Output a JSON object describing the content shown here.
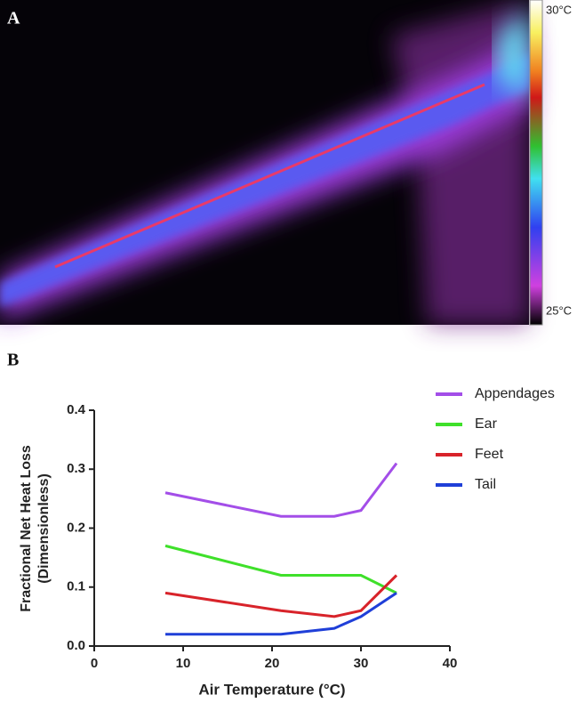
{
  "panel_a": {
    "label": "A",
    "colorbar_top": "30°C",
    "colorbar_bottom": "25°C"
  },
  "chart_data": {
    "type": "line",
    "panel_label": "B",
    "xlabel": "Air Temperature  (°C)",
    "ylabel": [
      "Fractional Net  Heat Loss",
      "(Dimensionless)"
    ],
    "x": [
      8,
      21,
      27,
      30,
      34
    ],
    "series": [
      {
        "name": "Appendages",
        "color": "#a34ee8",
        "values": [
          0.26,
          0.22,
          0.22,
          0.23,
          0.31
        ]
      },
      {
        "name": "Ear",
        "color": "#3fe02a",
        "values": [
          0.17,
          0.12,
          0.12,
          0.12,
          0.09
        ]
      },
      {
        "name": "Feet",
        "color": "#d8232a",
        "values": [
          0.09,
          0.06,
          0.05,
          0.06,
          0.12
        ]
      },
      {
        "name": "Tail",
        "color": "#1f3fd8",
        "values": [
          0.02,
          0.02,
          0.03,
          0.05,
          0.09
        ]
      }
    ],
    "xlim": [
      0,
      40
    ],
    "xticks": [
      0,
      10,
      20,
      30,
      40
    ],
    "ylim": [
      0,
      0.4
    ],
    "yticks": [
      {
        "value": 0,
        "label": "0.0"
      },
      0.1,
      0.2,
      0.3,
      0.4
    ],
    "grid": false,
    "legend": "upper right"
  }
}
